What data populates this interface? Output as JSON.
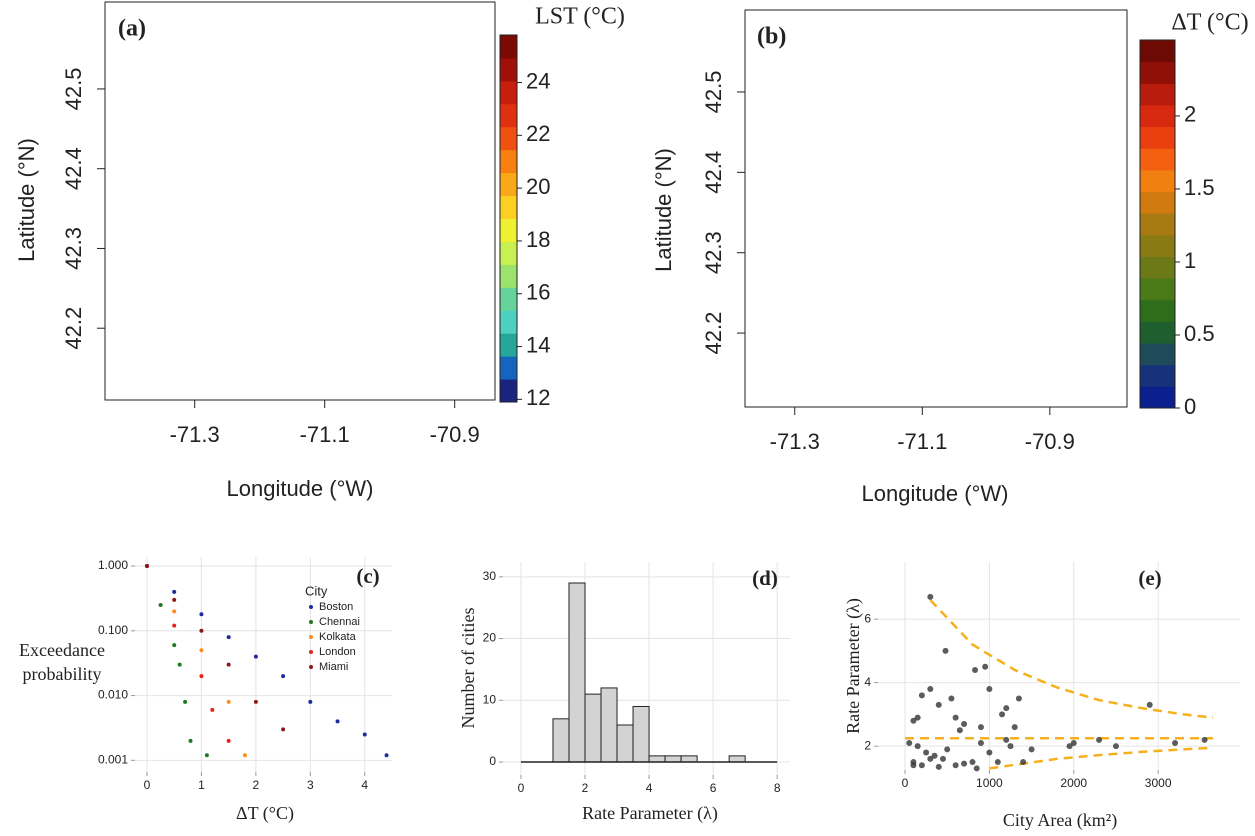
{
  "chart_data": [
    {
      "type": "map",
      "panel_label": "(a)",
      "xlabel": "Longitude (°W)",
      "ylabel": "Latitude (°N)",
      "xlim": [
        -71.438,
        -70.838
      ],
      "xticks": [
        -71.3,
        -71.1,
        -70.9
      ],
      "ylim": [
        42.11,
        42.609
      ],
      "yticks": [
        42.2,
        42.3,
        42.4,
        42.5
      ],
      "colorbar": {
        "label": "LST (°C)",
        "lim": [
          11.9,
          25.8
        ],
        "ticks": [
          12,
          14,
          16,
          18,
          20,
          22,
          24
        ],
        "colors": [
          "#1a237e",
          "#1565c0",
          "#26a69a",
          "#4dd0c0",
          "#66d39a",
          "#9be36a",
          "#c8f050",
          "#eef030",
          "#fbd020",
          "#fba818",
          "#f88010",
          "#f05010",
          "#e03010",
          "#c81e0e",
          "#a01008",
          "#7a0a04"
        ]
      }
    },
    {
      "type": "map",
      "panel_label": "(b)",
      "xlabel": "Longitude (°W)",
      "ylabel": "Latitude (°N)",
      "xlim": [
        -71.378,
        -70.779
      ],
      "xticks": [
        -71.3,
        -71.1,
        -70.9
      ],
      "ylim": [
        42.108,
        42.602
      ],
      "yticks": [
        42.2,
        42.3,
        42.4,
        42.5
      ],
      "colorbar": {
        "label": "ΔT (°C)",
        "lim": [
          0,
          2.52
        ],
        "ticks": [
          0,
          0.5,
          1,
          1.5,
          2
        ],
        "colors": [
          "#0b1f8f",
          "#15327a",
          "#1e4a5a",
          "#1f5e2e",
          "#2e6e1a",
          "#4a7a18",
          "#6b7a16",
          "#8a7a14",
          "#a87a12",
          "#d07a10",
          "#f08010",
          "#f46010",
          "#ea4010",
          "#d82810",
          "#b81c0c",
          "#901008",
          "#6e0a04"
        ]
      }
    },
    {
      "type": "scatter",
      "panel_label": "(c)",
      "xlabel": "ΔT (°C)",
      "ylabel": [
        "Exceedance",
        "probability"
      ],
      "log_y": true,
      "grid": true,
      "xlim": [
        -0.22,
        4.5
      ],
      "xticks": [
        0,
        1,
        2,
        3,
        4
      ],
      "ylim": [
        0.00066,
        1.38
      ],
      "yticks": [
        {
          "value": 1,
          "label": "1.000"
        },
        {
          "value": 0.1,
          "label": "0.100"
        },
        {
          "value": 0.01,
          "label": "0.010"
        },
        {
          "value": 0.001,
          "label": "0.001"
        }
      ],
      "legend_title": "City",
      "series": [
        {
          "name": "Boston",
          "color": "#1f2a9c",
          "x": [
            0,
            0.5,
            1,
            1.5,
            2,
            2.5,
            3,
            3.5,
            4,
            4.4
          ],
          "values": [
            1,
            0.4,
            0.18,
            0.08,
            0.04,
            0.02,
            0.008,
            0.004,
            0.0025,
            0.0012
          ]
        },
        {
          "name": "Chennai",
          "color": "#1e7a1e",
          "x": [
            0,
            0.25,
            0.5,
            0.6,
            0.7,
            0.8,
            1.1
          ],
          "values": [
            1,
            0.25,
            0.06,
            0.03,
            0.008,
            0.002,
            0.0012
          ]
        },
        {
          "name": "Kolkata",
          "color": "#ff8c1a",
          "x": [
            0,
            0.5,
            1,
            1.5,
            1.8
          ],
          "values": [
            1,
            0.2,
            0.05,
            0.008,
            0.0012
          ]
        },
        {
          "name": "London",
          "color": "#e8231a",
          "x": [
            0,
            0.5,
            1,
            1.2,
            1.5
          ],
          "values": [
            1,
            0.12,
            0.02,
            0.006,
            0.002
          ]
        },
        {
          "name": "Miami",
          "color": "#8b1a1a",
          "x": [
            0,
            0.5,
            1,
            1.5,
            2,
            2.5
          ],
          "values": [
            1,
            0.3,
            0.1,
            0.03,
            0.008,
            0.003
          ]
        }
      ]
    },
    {
      "type": "histogram",
      "panel_label": "(d)",
      "xlabel": "Rate Parameter (λ)",
      "ylabel": "Number of cities",
      "grid": true,
      "color": "#d3d3d3",
      "xlim": [
        -0.56,
        8.4
      ],
      "xticks": [
        0,
        2,
        4,
        6,
        8
      ],
      "ylim": [
        -2.1,
        32.4
      ],
      "yticks": [
        0,
        10,
        20,
        30
      ],
      "bins": [
        0,
        0.5,
        1,
        1.5,
        2,
        2.5,
        3,
        3.5,
        4,
        4.5,
        5,
        5.5,
        6,
        6.5,
        7,
        7.5,
        8
      ],
      "counts": [
        0,
        0,
        7,
        29,
        11,
        12,
        6,
        9,
        1,
        1,
        1,
        0,
        0,
        1,
        0,
        0
      ]
    },
    {
      "type": "scatter",
      "panel_label": "(e)",
      "xlabel": "City Area (km²)",
      "ylabel": "Rate Parameter (λ)",
      "grid": true,
      "xlim": [
        -320,
        3970
      ],
      "xticks": [
        0,
        1000,
        2000,
        3000
      ],
      "ylim": [
        1.25,
        7.8
      ],
      "yticks": [
        2,
        4,
        6
      ],
      "series": [
        {
          "color": "#333333",
          "x": [
            300,
            480,
            950,
            830,
            1350,
            1200,
            1000,
            1150,
            1300,
            300,
            200,
            150,
            100,
            400,
            550,
            600,
            700,
            900,
            50,
            150,
            250,
            350,
            450,
            500,
            100,
            200,
            300,
            400,
            600,
            700,
            800,
            900,
            1000,
            1100,
            1200,
            1250,
            1400,
            1500,
            1950,
            2000,
            2500,
            2900,
            3200,
            3550,
            850,
            2300,
            100,
            650
          ],
          "values": [
            6.7,
            5.0,
            4.5,
            4.4,
            3.5,
            3.2,
            3.8,
            3.0,
            2.6,
            3.8,
            3.6,
            2.9,
            2.8,
            3.3,
            3.5,
            2.9,
            2.7,
            2.6,
            2.1,
            2.0,
            1.8,
            1.7,
            1.6,
            1.9,
            1.5,
            1.4,
            1.6,
            1.35,
            1.4,
            1.45,
            1.5,
            2.1,
            1.8,
            1.5,
            2.2,
            2.0,
            1.5,
            1.9,
            2.0,
            2.1,
            2.0,
            3.3,
            2.1,
            2.2,
            1.3,
            2.2,
            1.4,
            2.5
          ]
        }
      ],
      "lines": [
        {
          "color": "#f4b11c",
          "x": [
            300,
            800,
            1300,
            1800,
            2300,
            2800,
            3300,
            3650
          ],
          "values": [
            6.6,
            5.2,
            4.4,
            3.85,
            3.45,
            3.2,
            3.0,
            2.9
          ]
        },
        {
          "color": "#f4b11c",
          "x": [
            0,
            3650
          ],
          "values": [
            2.25,
            2.25
          ]
        },
        {
          "color": "#f4b11c",
          "x": [
            1000,
            1400,
            1800,
            2300,
            2800,
            3300,
            3650
          ],
          "values": [
            1.3,
            1.45,
            1.6,
            1.72,
            1.82,
            1.9,
            1.95
          ]
        }
      ]
    }
  ]
}
